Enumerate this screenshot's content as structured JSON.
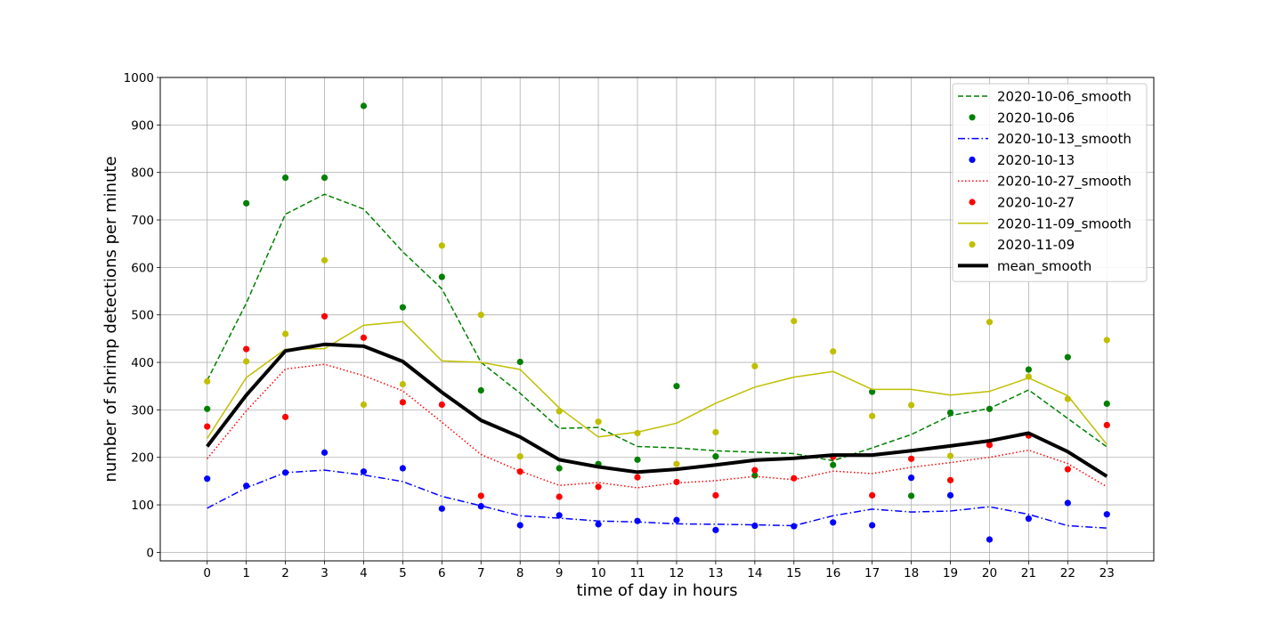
{
  "chart_data": {
    "type": "line",
    "title": "",
    "xlabel": "time of day in hours",
    "ylabel": "number of shrimp detections per minute",
    "xlim": [
      -1.2,
      24.2
    ],
    "ylim": [
      -18,
      1000
    ],
    "x": [
      0,
      1,
      2,
      3,
      4,
      5,
      6,
      7,
      8,
      9,
      10,
      11,
      12,
      13,
      14,
      15,
      16,
      17,
      18,
      19,
      20,
      21,
      22,
      23
    ],
    "x_ticks": [
      0,
      1,
      2,
      3,
      4,
      5,
      6,
      7,
      8,
      9,
      10,
      11,
      12,
      13,
      14,
      15,
      16,
      17,
      18,
      19,
      20,
      21,
      22,
      23
    ],
    "y_ticks": [
      0,
      100,
      200,
      300,
      400,
      500,
      600,
      700,
      800,
      900,
      1000
    ],
    "grid": true,
    "legend_position": "top-right",
    "series": [
      {
        "name": "2020-10-06_smooth",
        "kind": "line",
        "style": "dashed",
        "color": "#008000",
        "width": 1.5,
        "values": [
          362,
          525,
          712,
          754,
          723,
          633,
          555,
          400,
          335,
          261,
          263,
          223,
          220,
          214,
          211,
          208,
          193,
          220,
          248,
          288,
          303,
          342,
          282,
          222
        ]
      },
      {
        "name": "2020-10-06",
        "kind": "points",
        "color": "#008000",
        "values": [
          302,
          735,
          789,
          789,
          940,
          516,
          580,
          341,
          401,
          177,
          186,
          195,
          350,
          202,
          162,
          null,
          184,
          338,
          119,
          294,
          302,
          385,
          411,
          313
        ]
      },
      {
        "name": "2020-10-13_smooth",
        "kind": "line",
        "style": "dashdot",
        "color": "#0000ff",
        "width": 1.5,
        "values": [
          93,
          136,
          168,
          173,
          163,
          149,
          118,
          98,
          77,
          72,
          66,
          64,
          60,
          59,
          58,
          56,
          77,
          91,
          85,
          87,
          96,
          80,
          56,
          51
        ]
      },
      {
        "name": "2020-10-13",
        "kind": "points",
        "color": "#0000ff",
        "values": [
          155,
          140,
          168,
          210,
          170,
          177,
          92,
          97,
          57,
          78,
          59,
          66,
          68,
          47,
          56,
          55,
          63,
          57,
          157,
          120,
          27,
          71,
          104,
          80
        ]
      },
      {
        "name": "2020-10-27_smooth",
        "kind": "line",
        "style": "dotted",
        "color": "#ff0000",
        "width": 1.5,
        "values": [
          197,
          298,
          386,
          396,
          372,
          340,
          274,
          206,
          171,
          141,
          147,
          136,
          146,
          151,
          160,
          153,
          171,
          166,
          179,
          189,
          200,
          215,
          187,
          138
        ]
      },
      {
        "name": "2020-10-27",
        "kind": "points",
        "color": "#ff0000",
        "values": [
          265,
          428,
          285,
          497,
          452,
          316,
          311,
          119,
          170,
          117,
          138,
          158,
          148,
          120,
          173,
          156,
          201,
          120,
          197,
          152,
          226,
          246,
          175,
          268
        ]
      },
      {
        "name": "2020-11-09_smooth",
        "kind": "line",
        "style": "solid",
        "color": "#bfbf00",
        "width": 1.5,
        "values": [
          240,
          368,
          428,
          429,
          478,
          486,
          403,
          400,
          385,
          304,
          243,
          253,
          272,
          314,
          348,
          369,
          381,
          343,
          343,
          331,
          339,
          367,
          330,
          227
        ]
      },
      {
        "name": "2020-11-09",
        "kind": "points",
        "color": "#bfbf00",
        "values": [
          360,
          402,
          460,
          615,
          311,
          354,
          646,
          500,
          202,
          297,
          275,
          251,
          186,
          253,
          392,
          487,
          423,
          287,
          310,
          203,
          485,
          370,
          323,
          447
        ]
      },
      {
        "name": "mean_smooth",
        "kind": "line",
        "style": "solid",
        "color": "#000000",
        "width": 4,
        "values": [
          223,
          331,
          424,
          438,
          434,
          402,
          337,
          278,
          243,
          195,
          180,
          169,
          175,
          184,
          194,
          198,
          205,
          205,
          214,
          224,
          235,
          251,
          212,
          160
        ]
      }
    ]
  }
}
